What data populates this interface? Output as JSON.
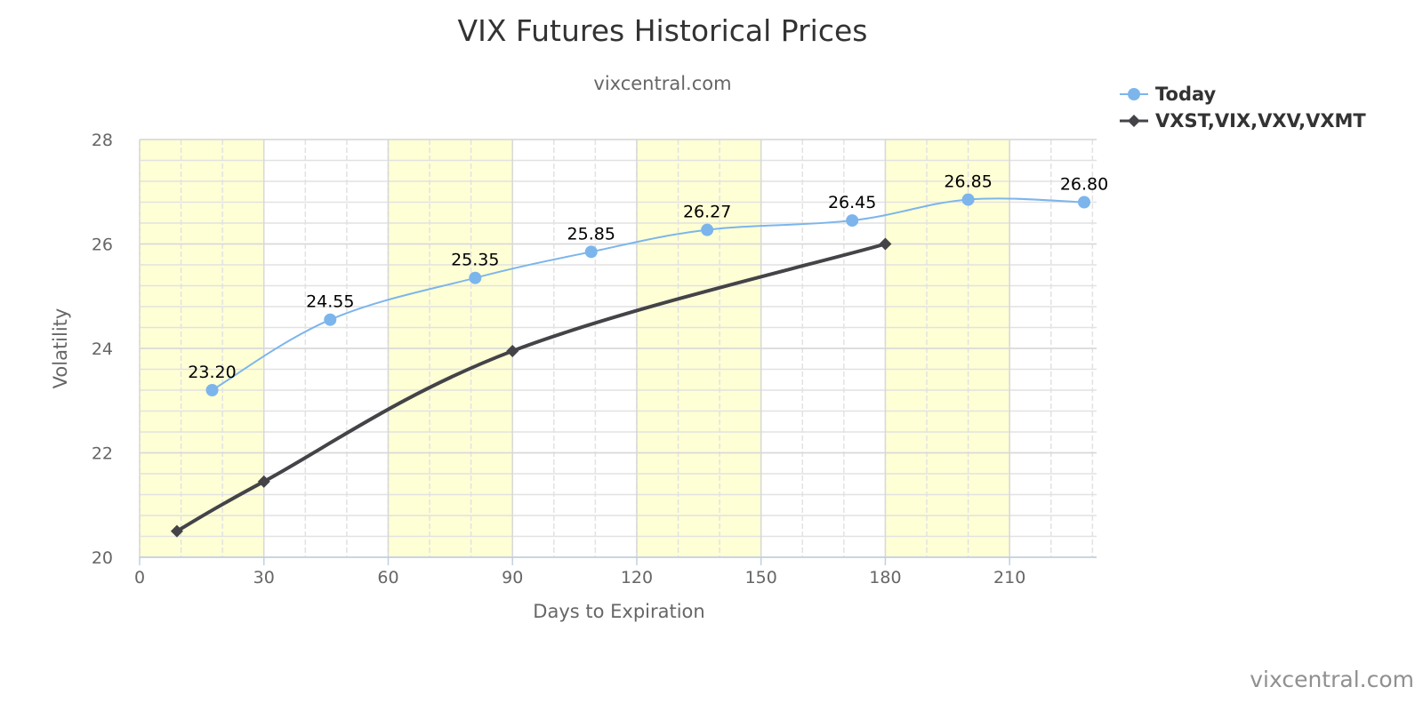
{
  "chart_data": {
    "type": "line",
    "title": "VIX Futures Historical Prices",
    "subtitle": "vixcentral.com",
    "xlabel": "Days to Expiration",
    "ylabel": "Volatility",
    "xlim": [
      0,
      231
    ],
    "ylim": [
      20,
      28
    ],
    "x_ticks": [
      0,
      30,
      60,
      90,
      120,
      150,
      180,
      210
    ],
    "y_ticks": [
      20,
      22,
      24,
      26,
      28
    ],
    "grid": true,
    "shaded_bands": [
      [
        0,
        30
      ],
      [
        60,
        90
      ],
      [
        120,
        150
      ],
      [
        180,
        210
      ]
    ],
    "legend_position": "top-right",
    "series": [
      {
        "name": "Today",
        "color": "#7cb5ec",
        "marker": "circle",
        "x": [
          17.5,
          46,
          81,
          109,
          137,
          172,
          200,
          228
        ],
        "y": [
          23.2,
          24.55,
          25.35,
          25.85,
          26.27,
          26.45,
          26.85,
          26.8
        ],
        "labels": [
          "23.20",
          "24.55",
          "25.35",
          "25.85",
          "26.27",
          "26.45",
          "26.85",
          "26.80"
        ]
      },
      {
        "name": "VXST,VIX,VXV,VXMT",
        "color": "#434348",
        "marker": "diamond",
        "x": [
          9,
          30,
          90,
          180
        ],
        "y": [
          20.5,
          21.45,
          23.95,
          26.0
        ]
      }
    ]
  },
  "credits": "vixcentral.com"
}
